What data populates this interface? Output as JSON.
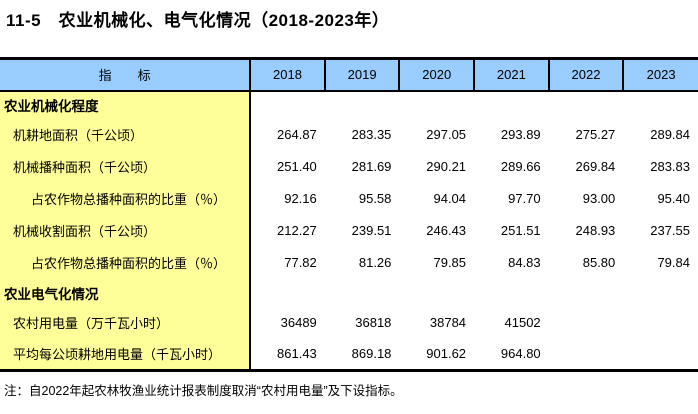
{
  "page": {
    "title": "11-5　农业机械化、电气化情况（2018-2023年）",
    "note": "注：自2022年起农林牧渔业统计报表制度取消“农村用电量”及下设指标。"
  },
  "colors": {
    "header_bg": "#99CCFF",
    "indicator_col_bg": "#FFFF99",
    "border": "#000000",
    "text": "#000000"
  },
  "table": {
    "indicator_header": "指　　标",
    "year_headers": [
      "2018",
      "2019",
      "2020",
      "2021",
      "2022",
      "2023"
    ],
    "rows": [
      {
        "label": "农业机械化程度",
        "type": "section",
        "indent": 0,
        "values": [
          "",
          "",
          "",
          "",
          "",
          ""
        ]
      },
      {
        "label": "机耕地面积（千公顷）",
        "type": "data",
        "indent": 1,
        "values": [
          "264.87",
          "283.35",
          "297.05",
          "293.89",
          "275.27",
          "289.84"
        ]
      },
      {
        "label": "机械播种面积（千公顷）",
        "type": "data",
        "indent": 1,
        "values": [
          "251.40",
          "281.69",
          "290.21",
          "289.66",
          "269.84",
          "283.83"
        ]
      },
      {
        "label": "占农作物总播种面积的比重（％）",
        "type": "data",
        "indent": 2,
        "values": [
          "92.16",
          "95.58",
          "94.04",
          "97.70",
          "93.00",
          "95.40"
        ]
      },
      {
        "label": "机械收割面积（千公顷）",
        "type": "data",
        "indent": 1,
        "values": [
          "212.27",
          "239.51",
          "246.43",
          "251.51",
          "248.93",
          "237.55"
        ]
      },
      {
        "label": "占农作物总播种面积的比重（％）",
        "type": "data",
        "indent": 2,
        "values": [
          "77.82",
          "81.26",
          "79.85",
          "84.83",
          "85.80",
          "79.84"
        ]
      },
      {
        "label": "农业电气化情况",
        "type": "section",
        "indent": 0,
        "values": [
          "",
          "",
          "",
          "",
          "",
          ""
        ]
      },
      {
        "label": "农村用电量（万千瓦小时）",
        "type": "data",
        "indent": 1,
        "values": [
          "36489",
          "36818",
          "38784",
          "41502",
          "",
          ""
        ]
      },
      {
        "label": "平均每公顷耕地用电量（千瓦小时）",
        "type": "data",
        "indent": 1,
        "values": [
          "861.43",
          "869.18",
          "901.62",
          "964.80",
          "",
          ""
        ]
      }
    ]
  }
}
